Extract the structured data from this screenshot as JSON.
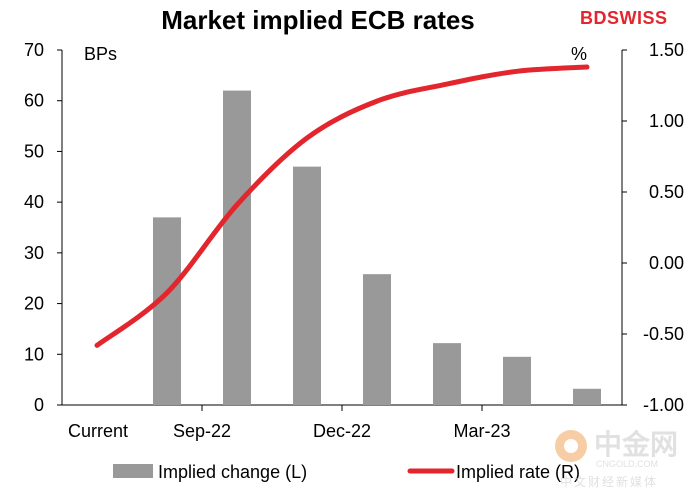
{
  "chart_data": {
    "type": "bar",
    "title": "Market implied ECB rates",
    "categories": [
      "Current",
      "",
      "Sep-22",
      "",
      "Dec-22",
      "",
      "Mar-23",
      ""
    ],
    "x_tick_labels": [
      "Current",
      "Sep-22",
      "Dec-22",
      "Mar-23"
    ],
    "left_axis": {
      "unit_label": "BPs",
      "ylim": [
        0,
        70
      ],
      "ticks": [
        "0",
        "10",
        "20",
        "30",
        "40",
        "50",
        "60",
        "70"
      ]
    },
    "right_axis": {
      "unit_label": "%",
      "ylim": [
        -1.0,
        1.5
      ],
      "ticks": [
        "-1.00",
        "-0.50",
        "0.00",
        "0.50",
        "1.00",
        "1.50"
      ]
    },
    "grid": false,
    "legend_position": "bottom",
    "series": [
      {
        "name": "Implied change (L)",
        "type": "bar",
        "axis": "left",
        "color": "#999999",
        "values": [
          null,
          37,
          62,
          47,
          25.8,
          12.2,
          9.5,
          3.2
        ]
      },
      {
        "name": "Implied rate (R)",
        "type": "line",
        "axis": "right",
        "color": "#e3262d",
        "values": [
          -0.58,
          -0.21,
          0.41,
          0.88,
          1.14,
          1.26,
          1.35,
          1.38
        ]
      }
    ]
  },
  "brand": {
    "logo_text": "BDSWISS",
    "logo_color": "#e3262d"
  },
  "watermark": {
    "main": "中金网",
    "site": "CNGOLD.COM",
    "sub": "中文财经新媒体"
  }
}
